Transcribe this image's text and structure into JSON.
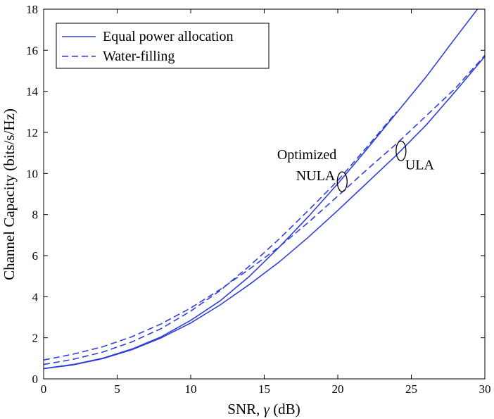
{
  "chart_data": {
    "type": "line",
    "xlabel_prefix": "SNR, ",
    "xlabel_symbol": "γ",
    "xlabel_suffix": " (dB)",
    "ylabel": "Channel Capacity (bits/s/Hz)",
    "xlim": [
      0,
      30
    ],
    "ylim": [
      0,
      18
    ],
    "xticks": [
      "0",
      "5",
      "10",
      "15",
      "20",
      "25",
      "30"
    ],
    "yticks": [
      "0",
      "2",
      "4",
      "6",
      "8",
      "10",
      "12",
      "14",
      "16",
      "18"
    ],
    "grid": false,
    "legend_position": "top-left",
    "legend": [
      {
        "label": "Equal power allocation",
        "style": "solid"
      },
      {
        "label": "Water-filling",
        "style": "dashed"
      }
    ],
    "annotations": [
      {
        "text_lines": [
          "Optimized",
          "NULA"
        ],
        "x": 20.3,
        "y": 9.6
      },
      {
        "text_lines": [
          "ULA"
        ],
        "x": 24.3,
        "y": 11.1
      }
    ],
    "color": "#2f3fd8",
    "series": [
      {
        "group": "NULA",
        "style": "solid",
        "x": [
          0,
          2,
          4,
          6,
          8,
          10,
          12,
          14,
          16,
          18,
          20,
          22,
          24,
          26,
          28,
          29.5
        ],
        "y": [
          0.5,
          0.7,
          1.0,
          1.45,
          2.05,
          2.85,
          3.8,
          5.0,
          6.4,
          7.9,
          9.5,
          11.2,
          12.95,
          14.7,
          16.6,
          18.0
        ]
      },
      {
        "group": "NULA",
        "style": "dashed",
        "x": [
          0,
          2,
          4,
          6,
          8,
          10,
          12,
          14,
          16,
          18,
          20,
          22,
          24
        ],
        "y": [
          0.7,
          0.95,
          1.3,
          1.8,
          2.45,
          3.3,
          4.3,
          5.5,
          6.8,
          8.2,
          9.65,
          11.3,
          13.0
        ]
      },
      {
        "group": "ULA",
        "style": "solid",
        "x": [
          0,
          2,
          4,
          6,
          8,
          10,
          12,
          14,
          16,
          18,
          20,
          22,
          24,
          26,
          28,
          30
        ],
        "y": [
          0.5,
          0.68,
          0.98,
          1.42,
          2.0,
          2.72,
          3.6,
          4.6,
          5.68,
          6.9,
          8.2,
          9.55,
          10.9,
          12.35,
          14.0,
          15.7
        ]
      },
      {
        "group": "ULA",
        "style": "dashed",
        "x": [
          0,
          2,
          4,
          6,
          8,
          10,
          12,
          14,
          16,
          18,
          20,
          22,
          24,
          26,
          28,
          30
        ],
        "y": [
          0.92,
          1.2,
          1.56,
          2.05,
          2.68,
          3.45,
          4.35,
          5.35,
          6.42,
          7.62,
          8.9,
          10.2,
          11.45,
          12.8,
          14.15,
          15.75
        ]
      }
    ]
  }
}
